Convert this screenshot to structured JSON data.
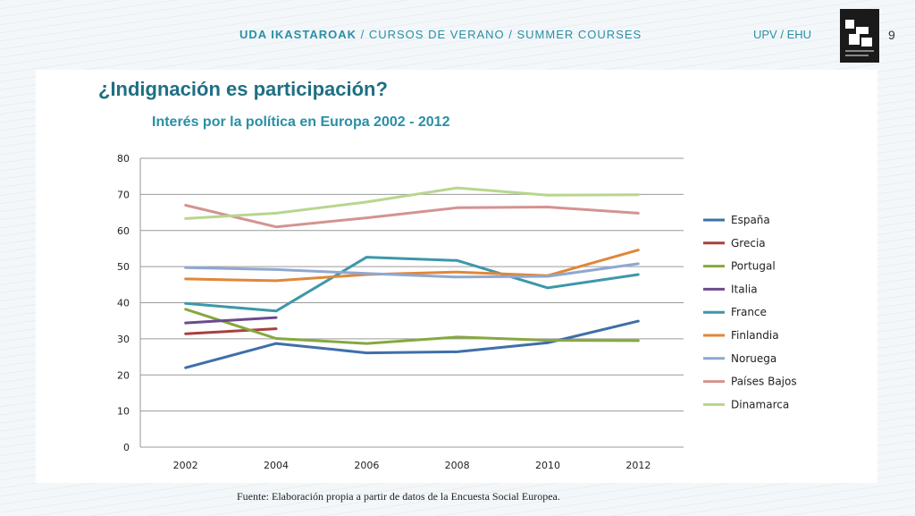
{
  "header": {
    "left_bold": "UDA IKASTAROAK",
    "left_rest": "/  CURSOS DE VERANO  /  SUMMER  COURSES",
    "university": "UPV / EHU",
    "page_number": "9"
  },
  "slide_title": "¿Indignación es participación?",
  "source": "Fuente: Elaboración propia a partir de datos de la Encuesta Social Europea.",
  "chart_data": {
    "type": "line",
    "title": "Interés por la política en Europa 2002 - 2012",
    "xlabel": "",
    "ylabel": "",
    "x": [
      2002,
      2004,
      2006,
      2008,
      2010,
      2012
    ],
    "ylim": [
      0,
      80
    ],
    "yticks": [
      0,
      10,
      20,
      30,
      40,
      50,
      60,
      70,
      80
    ],
    "grid": true,
    "legend_placement": "right",
    "series": [
      {
        "name": "España",
        "color": "#3f6fa8",
        "values": [
          22,
          28.7,
          26.1,
          26.4,
          28.9,
          34.9
        ]
      },
      {
        "name": "Grecia",
        "color": "#a8403f",
        "values": [
          31.4,
          32.8,
          null,
          null,
          null,
          null
        ]
      },
      {
        "name": "Portugal",
        "color": "#86a83f",
        "values": [
          38.2,
          30.1,
          28.7,
          30.5,
          29.6,
          29.5
        ]
      },
      {
        "name": "Italia",
        "color": "#6b4a8e",
        "values": [
          34.4,
          35.9,
          null,
          null,
          null,
          null
        ]
      },
      {
        "name": "France",
        "color": "#3c98a9",
        "values": [
          39.8,
          37.7,
          52.6,
          51.7,
          44.1,
          47.8
        ]
      },
      {
        "name": "Finlandia",
        "color": "#e0873a",
        "values": [
          46.6,
          46.1,
          47.8,
          48.5,
          47.5,
          54.6
        ]
      },
      {
        "name": "Noruega",
        "color": "#8fa8d1",
        "values": [
          49.7,
          49.2,
          48.1,
          47.1,
          47.3,
          50.8
        ]
      },
      {
        "name": "Países Bajos",
        "color": "#d49391",
        "values": [
          67,
          61,
          63.5,
          66.3,
          66.5,
          64.8
        ]
      },
      {
        "name": "Dinamarca",
        "color": "#b8d68e",
        "values": [
          63.3,
          64.8,
          67.9,
          71.8,
          69.8,
          69.9
        ]
      }
    ]
  }
}
